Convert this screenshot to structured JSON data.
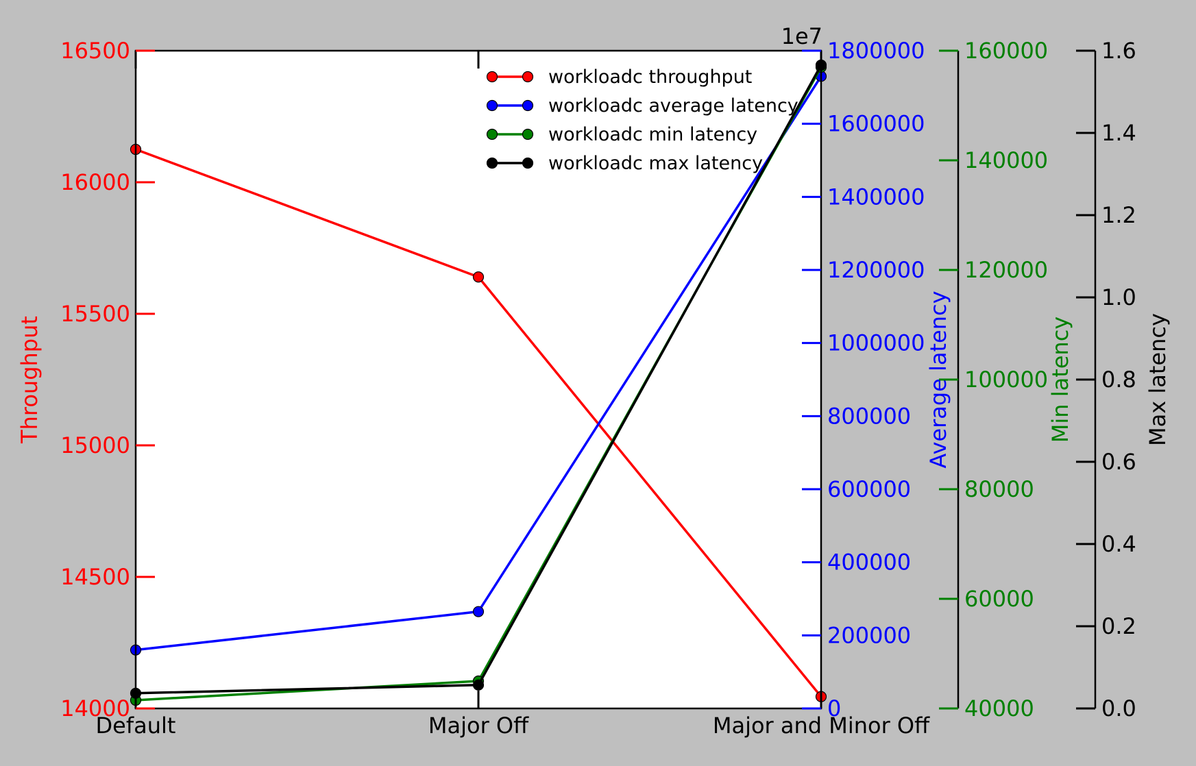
{
  "chart_data": {
    "type": "line",
    "categories": [
      "Default",
      "Major Off",
      "Major and Minor Off"
    ],
    "series": [
      {
        "name": "workloadc throughput",
        "axis": "throughput",
        "color": "#ff0000",
        "values": [
          16125,
          15640,
          14045
        ]
      },
      {
        "name": "workloadc average latency",
        "axis": "avg_latency",
        "color": "#0000ff",
        "values": [
          160000,
          265000,
          1730000
        ]
      },
      {
        "name": "workloadc min latency",
        "axis": "min_latency",
        "color": "#008000",
        "values": [
          41500,
          45000,
          157000
        ]
      },
      {
        "name": "workloadc max latency",
        "axis": "max_latency",
        "color": "#000000",
        "values": [
          0.037,
          0.057,
          1.565
        ]
      }
    ],
    "axes": {
      "throughput": {
        "label": "Throughput",
        "color": "#ff0000",
        "ylim": [
          14000,
          16500
        ],
        "ticks": [
          14000,
          14500,
          15000,
          15500,
          16000,
          16500
        ],
        "tick_labels": [
          "14000",
          "14500",
          "15000",
          "15500",
          "16000",
          "16500"
        ]
      },
      "avg_latency": {
        "label": "Average latency",
        "color": "#0000ff",
        "ylim": [
          0,
          1800000
        ],
        "ticks": [
          0,
          200000,
          400000,
          600000,
          800000,
          1000000,
          1200000,
          1400000,
          1600000,
          1800000
        ],
        "tick_labels": [
          "0",
          "200000",
          "400000",
          "600000",
          "800000",
          "1000000",
          "1200000",
          "1400000",
          "1600000",
          "1800000"
        ]
      },
      "min_latency": {
        "label": "Min latency",
        "color": "#008000",
        "ylim": [
          40000,
          160000
        ],
        "ticks": [
          40000,
          60000,
          80000,
          100000,
          120000,
          140000,
          160000
        ],
        "tick_labels": [
          "40000",
          "60000",
          "80000",
          "100000",
          "120000",
          "140000",
          "160000"
        ]
      },
      "max_latency": {
        "label": "Max latency",
        "color": "#000000",
        "ylim": [
          0.0,
          1.6
        ],
        "ticks": [
          0.0,
          0.2,
          0.4,
          0.6,
          0.8,
          1.0,
          1.2,
          1.4,
          1.6
        ],
        "tick_labels": [
          "0.0",
          "0.2",
          "0.4",
          "0.6",
          "0.8",
          "1.0",
          "1.2",
          "1.4",
          "1.6"
        ],
        "offset_label": "1e7"
      }
    },
    "legend": {
      "placement": "top-center",
      "entries": [
        "workloadc throughput",
        "workloadc average latency",
        "workloadc min latency",
        "workloadc max latency"
      ]
    },
    "grid": false
  }
}
